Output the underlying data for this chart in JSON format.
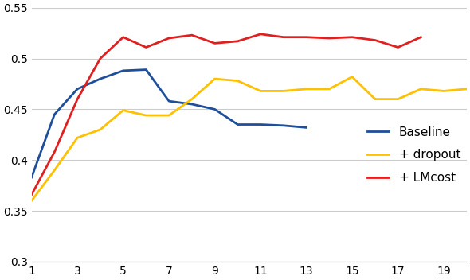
{
  "x": [
    1,
    2,
    3,
    4,
    5,
    6,
    7,
    8,
    9,
    10,
    11,
    12,
    13,
    14,
    15,
    16,
    17,
    18,
    19,
    20
  ],
  "baseline": [
    0.383,
    0.445,
    0.47,
    0.48,
    0.488,
    0.489,
    0.458,
    0.455,
    0.45,
    0.435,
    0.435,
    0.434,
    0.432,
    null,
    null,
    null,
    null,
    null,
    null,
    null
  ],
  "dropout": [
    0.36,
    0.39,
    0.422,
    0.43,
    0.449,
    0.444,
    0.444,
    0.46,
    0.48,
    0.478,
    0.468,
    0.468,
    0.47,
    0.47,
    0.482,
    0.46,
    0.46,
    0.47,
    0.468,
    0.47
  ],
  "lmcost": [
    0.366,
    0.408,
    0.46,
    0.5,
    0.521,
    0.511,
    0.52,
    0.523,
    0.515,
    0.517,
    0.524,
    0.521,
    0.521,
    0.52,
    0.521,
    0.518,
    0.511,
    0.521,
    null,
    null
  ],
  "baseline_color": "#1f4e9b",
  "dropout_color": "#ffc000",
  "lmcost_color": "#e02020",
  "ylim": [
    0.3,
    0.55
  ],
  "yticks": [
    0.3,
    0.35,
    0.4,
    0.45,
    0.5,
    0.55
  ],
  "xticks": [
    1,
    3,
    5,
    7,
    9,
    11,
    13,
    15,
    17,
    19
  ],
  "legend_labels": [
    "Baseline",
    "+ dropout",
    "+ LMcost"
  ],
  "legend_loc": "center right",
  "figsize": [
    5.9,
    3.52
  ],
  "dpi": 100,
  "linewidth": 2.0
}
